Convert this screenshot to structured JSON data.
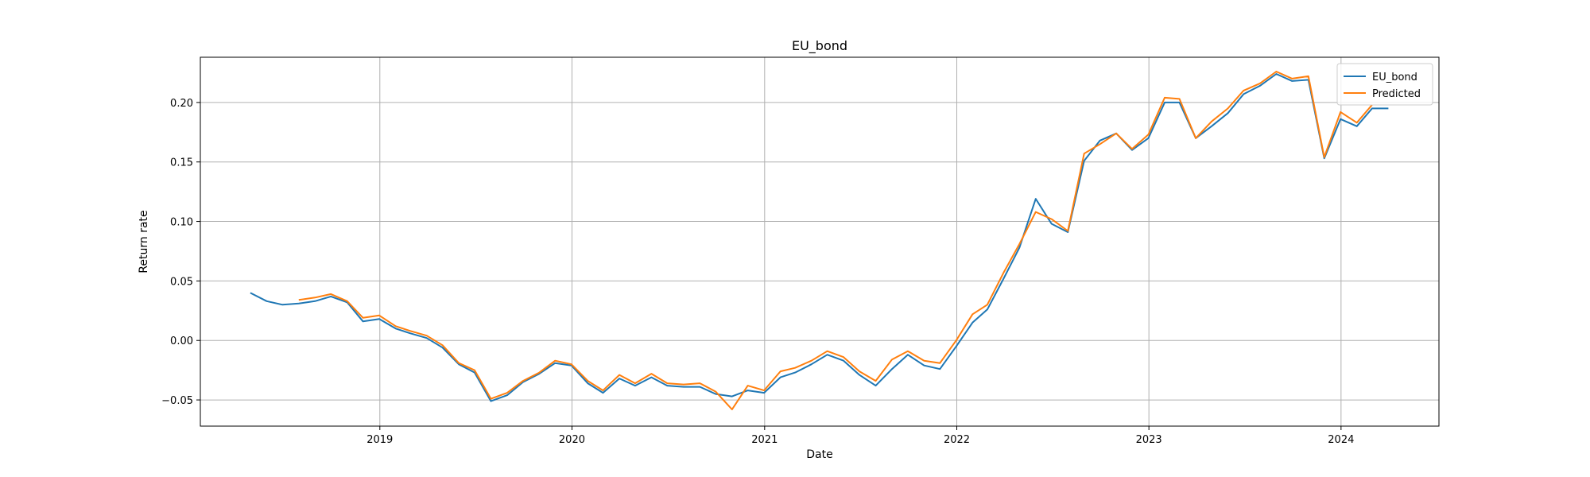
{
  "chart_data": {
    "type": "line",
    "title": "EU_bond",
    "xlabel": "Date",
    "ylabel": "Return rate",
    "x_is_date": true,
    "xlim": [
      "2018-01-25",
      "2024-07-05"
    ],
    "ylim": [
      -0.072,
      0.238
    ],
    "grid": true,
    "legend_position": "top-right",
    "x_ticks": [
      {
        "date": "2019-01-01",
        "label": "2019"
      },
      {
        "date": "2020-01-01",
        "label": "2020"
      },
      {
        "date": "2021-01-01",
        "label": "2021"
      },
      {
        "date": "2022-01-01",
        "label": "2022"
      },
      {
        "date": "2023-01-01",
        "label": "2023"
      },
      {
        "date": "2024-01-01",
        "label": "2024"
      }
    ],
    "y_ticks": [
      {
        "value": -0.05,
        "label": "−0.05"
      },
      {
        "value": 0.0,
        "label": "0.00"
      },
      {
        "value": 0.05,
        "label": "0.05"
      },
      {
        "value": 0.1,
        "label": "0.10"
      },
      {
        "value": 0.15,
        "label": "0.15"
      },
      {
        "value": 0.2,
        "label": "0.20"
      }
    ],
    "series": [
      {
        "name": "EU_bond",
        "color": "#1f77b4",
        "points": [
          [
            "2018-04-30",
            0.04
          ],
          [
            "2018-05-31",
            0.033
          ],
          [
            "2018-06-30",
            0.03
          ],
          [
            "2018-07-31",
            0.031
          ],
          [
            "2018-08-31",
            0.033
          ],
          [
            "2018-09-30",
            0.037
          ],
          [
            "2018-10-31",
            0.032
          ],
          [
            "2018-11-30",
            0.016
          ],
          [
            "2018-12-31",
            0.018
          ],
          [
            "2019-01-31",
            0.01
          ],
          [
            "2019-02-28",
            0.006
          ],
          [
            "2019-03-31",
            0.002
          ],
          [
            "2019-04-30",
            -0.006
          ],
          [
            "2019-05-31",
            -0.02
          ],
          [
            "2019-06-30",
            -0.027
          ],
          [
            "2019-07-31",
            -0.051
          ],
          [
            "2019-08-31",
            -0.046
          ],
          [
            "2019-09-30",
            -0.035
          ],
          [
            "2019-10-31",
            -0.028
          ],
          [
            "2019-11-30",
            -0.019
          ],
          [
            "2019-12-31",
            -0.021
          ],
          [
            "2020-01-31",
            -0.036
          ],
          [
            "2020-02-29",
            -0.044
          ],
          [
            "2020-03-31",
            -0.032
          ],
          [
            "2020-04-30",
            -0.038
          ],
          [
            "2020-05-31",
            -0.031
          ],
          [
            "2020-06-30",
            -0.038
          ],
          [
            "2020-07-31",
            -0.039
          ],
          [
            "2020-08-31",
            -0.039
          ],
          [
            "2020-09-30",
            -0.045
          ],
          [
            "2020-10-31",
            -0.047
          ],
          [
            "2020-11-30",
            -0.042
          ],
          [
            "2020-12-31",
            -0.044
          ],
          [
            "2021-01-31",
            -0.031
          ],
          [
            "2021-02-28",
            -0.027
          ],
          [
            "2021-03-31",
            -0.02
          ],
          [
            "2021-04-30",
            -0.012
          ],
          [
            "2021-05-31",
            -0.017
          ],
          [
            "2021-06-30",
            -0.029
          ],
          [
            "2021-07-31",
            -0.038
          ],
          [
            "2021-08-31",
            -0.024
          ],
          [
            "2021-09-30",
            -0.012
          ],
          [
            "2021-10-31",
            -0.021
          ],
          [
            "2021-11-30",
            -0.024
          ],
          [
            "2021-12-31",
            -0.005
          ],
          [
            "2022-01-31",
            0.015
          ],
          [
            "2022-02-28",
            0.026
          ],
          [
            "2022-03-31",
            0.052
          ],
          [
            "2022-04-30",
            0.078
          ],
          [
            "2022-05-31",
            0.119
          ],
          [
            "2022-06-30",
            0.098
          ],
          [
            "2022-07-31",
            0.091
          ],
          [
            "2022-08-31",
            0.151
          ],
          [
            "2022-09-30",
            0.168
          ],
          [
            "2022-10-31",
            0.174
          ],
          [
            "2022-11-30",
            0.16
          ],
          [
            "2022-12-31",
            0.17
          ],
          [
            "2023-01-31",
            0.2
          ],
          [
            "2023-02-28",
            0.2
          ],
          [
            "2023-03-31",
            0.17
          ],
          [
            "2023-04-30",
            0.18
          ],
          [
            "2023-05-31",
            0.191
          ],
          [
            "2023-06-30",
            0.207
          ],
          [
            "2023-07-31",
            0.214
          ],
          [
            "2023-08-31",
            0.224
          ],
          [
            "2023-09-30",
            0.218
          ],
          [
            "2023-10-31",
            0.219
          ],
          [
            "2023-11-30",
            0.153
          ],
          [
            "2023-12-31",
            0.186
          ],
          [
            "2024-01-31",
            0.18
          ],
          [
            "2024-02-29",
            0.195
          ],
          [
            "2024-03-31",
            0.195
          ]
        ]
      },
      {
        "name": "Predicted",
        "color": "#ff7f0e",
        "points": [
          [
            "2018-07-31",
            0.034
          ],
          [
            "2018-08-31",
            0.036
          ],
          [
            "2018-09-30",
            0.039
          ],
          [
            "2018-10-31",
            0.033
          ],
          [
            "2018-11-30",
            0.019
          ],
          [
            "2018-12-31",
            0.021
          ],
          [
            "2019-01-31",
            0.012
          ],
          [
            "2019-02-28",
            0.008
          ],
          [
            "2019-03-31",
            0.004
          ],
          [
            "2019-04-30",
            -0.004
          ],
          [
            "2019-05-31",
            -0.019
          ],
          [
            "2019-06-30",
            -0.025
          ],
          [
            "2019-07-31",
            -0.049
          ],
          [
            "2019-08-31",
            -0.044
          ],
          [
            "2019-09-30",
            -0.034
          ],
          [
            "2019-10-31",
            -0.027
          ],
          [
            "2019-11-30",
            -0.017
          ],
          [
            "2019-12-31",
            -0.02
          ],
          [
            "2020-01-31",
            -0.034
          ],
          [
            "2020-02-29",
            -0.042
          ],
          [
            "2020-03-31",
            -0.029
          ],
          [
            "2020-04-30",
            -0.036
          ],
          [
            "2020-05-31",
            -0.028
          ],
          [
            "2020-06-30",
            -0.036
          ],
          [
            "2020-07-31",
            -0.037
          ],
          [
            "2020-08-31",
            -0.036
          ],
          [
            "2020-09-30",
            -0.043
          ],
          [
            "2020-10-31",
            -0.058
          ],
          [
            "2020-11-30",
            -0.038
          ],
          [
            "2020-12-31",
            -0.042
          ],
          [
            "2021-01-31",
            -0.026
          ],
          [
            "2021-02-28",
            -0.023
          ],
          [
            "2021-03-31",
            -0.017
          ],
          [
            "2021-04-30",
            -0.009
          ],
          [
            "2021-05-31",
            -0.014
          ],
          [
            "2021-06-30",
            -0.026
          ],
          [
            "2021-07-31",
            -0.034
          ],
          [
            "2021-08-31",
            -0.016
          ],
          [
            "2021-09-30",
            -0.009
          ],
          [
            "2021-10-31",
            -0.017
          ],
          [
            "2021-11-30",
            -0.019
          ],
          [
            "2021-12-31",
            0.0
          ],
          [
            "2022-01-31",
            0.022
          ],
          [
            "2022-02-28",
            0.03
          ],
          [
            "2022-03-31",
            0.057
          ],
          [
            "2022-04-30",
            0.081
          ],
          [
            "2022-05-31",
            0.108
          ],
          [
            "2022-06-30",
            0.102
          ],
          [
            "2022-07-31",
            0.092
          ],
          [
            "2022-08-31",
            0.157
          ],
          [
            "2022-09-30",
            0.165
          ],
          [
            "2022-10-31",
            0.174
          ],
          [
            "2022-11-30",
            0.161
          ],
          [
            "2022-12-31",
            0.173
          ],
          [
            "2023-01-31",
            0.204
          ],
          [
            "2023-02-28",
            0.203
          ],
          [
            "2023-03-31",
            0.17
          ],
          [
            "2023-04-30",
            0.184
          ],
          [
            "2023-05-31",
            0.195
          ],
          [
            "2023-06-30",
            0.21
          ],
          [
            "2023-07-31",
            0.216
          ],
          [
            "2023-08-31",
            0.226
          ],
          [
            "2023-09-30",
            0.22
          ],
          [
            "2023-10-31",
            0.222
          ],
          [
            "2023-11-30",
            0.154
          ],
          [
            "2023-12-31",
            0.192
          ],
          [
            "2024-01-31",
            0.183
          ],
          [
            "2024-02-29",
            0.198
          ]
        ]
      }
    ]
  }
}
